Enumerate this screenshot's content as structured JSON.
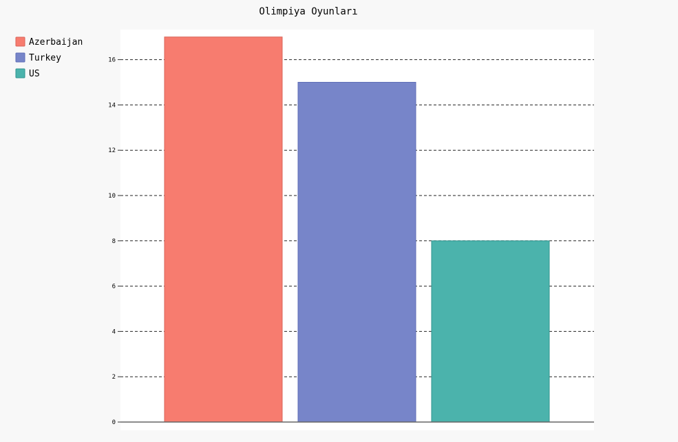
{
  "chart_data": {
    "type": "bar",
    "title": "Olimpiya Oyunları",
    "xlabel": "",
    "ylabel": "",
    "ylim": [
      0,
      17
    ],
    "yticks": [
      "0",
      "2",
      "4",
      "6",
      "8",
      "10",
      "12",
      "14",
      "16"
    ],
    "grid": true,
    "legend_position": "top-left",
    "series": [
      {
        "name": "Azerbaijan",
        "values": [
          17
        ],
        "color": "#f77c6f"
      },
      {
        "name": "Turkey",
        "values": [
          15
        ],
        "color": "#7785c9"
      },
      {
        "name": "US",
        "values": [
          8
        ],
        "color": "#4bb3ac"
      }
    ]
  }
}
